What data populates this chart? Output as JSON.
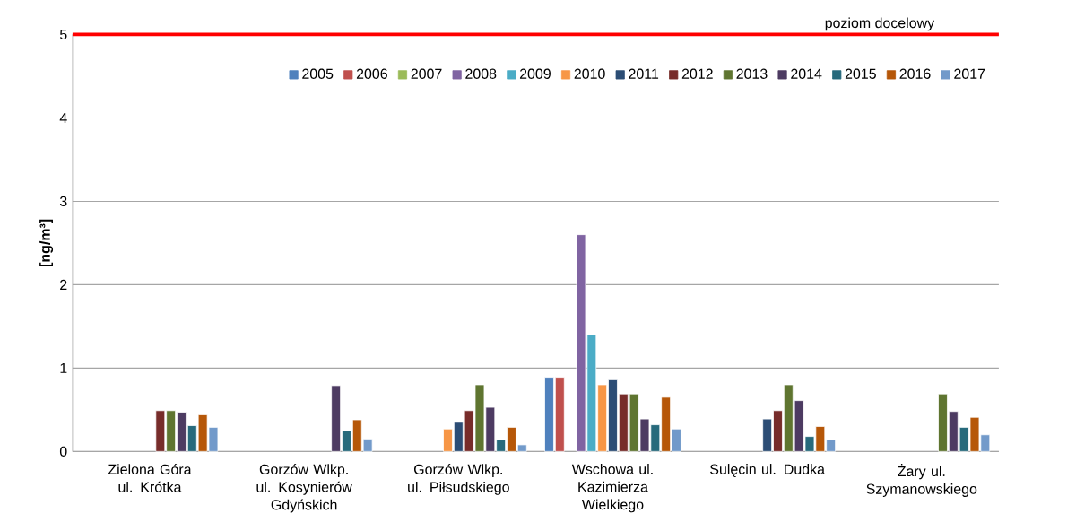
{
  "chart_data": {
    "type": "bar",
    "ylabel": "[ng/m³]",
    "categories": [
      "Zielona Góra ul. Krótka",
      "Gorzów Wlkp. ul. Kosynierów Gdyńskich",
      "Gorzów Wlkp. ul. Piłsudskiego",
      "Wschowa ul. Kazimierza Wielkiego",
      "Sulęcin ul. Dudka",
      "Żary ul. Szymanowskiego"
    ],
    "series": [
      {
        "name": "2005",
        "color": "#4f81bd",
        "values": [
          null,
          null,
          null,
          0.89,
          null,
          null
        ]
      },
      {
        "name": "2006",
        "color": "#c0504d",
        "values": [
          null,
          null,
          null,
          0.89,
          null,
          null
        ]
      },
      {
        "name": "2007",
        "color": "#9bbb59",
        "values": [
          null,
          null,
          null,
          null,
          null,
          null
        ]
      },
      {
        "name": "2008",
        "color": "#8064a2",
        "values": [
          null,
          null,
          null,
          2.6,
          null,
          null
        ]
      },
      {
        "name": "2009",
        "color": "#4bacc6",
        "values": [
          null,
          null,
          null,
          1.4,
          null,
          null
        ]
      },
      {
        "name": "2010",
        "color": "#f79646",
        "values": [
          null,
          null,
          0.27,
          0.8,
          null,
          null
        ]
      },
      {
        "name": "2011",
        "color": "#2c4d75",
        "values": [
          null,
          null,
          0.35,
          0.86,
          0.39,
          null
        ]
      },
      {
        "name": "2012",
        "color": "#772c2a",
        "values": [
          0.49,
          null,
          0.49,
          0.69,
          0.49,
          null
        ]
      },
      {
        "name": "2013",
        "color": "#5f7530",
        "values": [
          0.49,
          null,
          0.8,
          0.69,
          0.8,
          0.69
        ]
      },
      {
        "name": "2014",
        "color": "#4d3b62",
        "values": [
          0.47,
          0.79,
          0.53,
          0.39,
          0.61,
          0.48
        ]
      },
      {
        "name": "2015",
        "color": "#276a7c",
        "values": [
          0.31,
          0.25,
          0.14,
          0.32,
          0.18,
          0.29
        ]
      },
      {
        "name": "2016",
        "color": "#b65708",
        "values": [
          0.44,
          0.38,
          0.29,
          0.65,
          0.3,
          0.41
        ]
      },
      {
        "name": "2017",
        "color": "#729aca",
        "values": [
          0.29,
          0.15,
          0.08,
          0.27,
          0.14,
          0.2
        ]
      }
    ],
    "ylim": [
      0,
      5
    ],
    "yticks": [
      0,
      1,
      2,
      3,
      4,
      5
    ],
    "grid": "y",
    "legend": "top right",
    "ref_lines": [
      {
        "axis": "y",
        "value": 5,
        "label": "poziom docelowy",
        "color": "#ff0000"
      }
    ]
  }
}
